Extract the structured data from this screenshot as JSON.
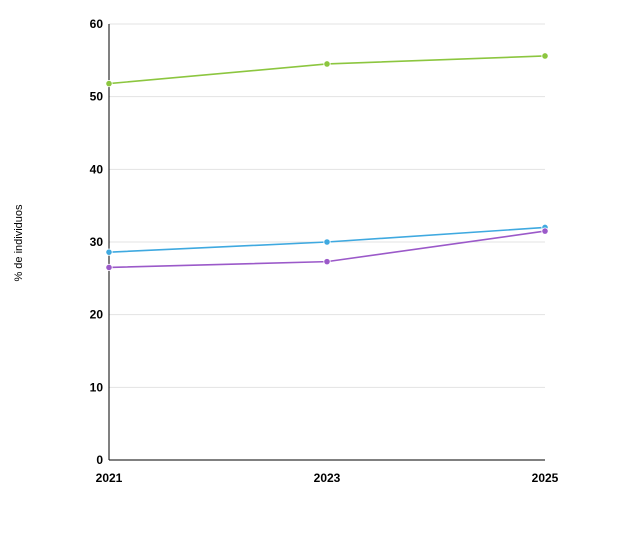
{
  "chart_data": {
    "type": "line",
    "title": "",
    "xlabel": "",
    "ylabel": "% de individuos",
    "x": [
      "2021",
      "2023",
      "2025"
    ],
    "ylim": [
      0,
      60
    ],
    "yticks": [
      0,
      10,
      20,
      30,
      40,
      50,
      60
    ],
    "grid": true,
    "legend": "none",
    "series": [
      {
        "color": "#8cc63f",
        "values": [
          51.8,
          54.5,
          55.6
        ]
      },
      {
        "color": "#3fa9e0",
        "values": [
          28.6,
          30.0,
          32.0
        ]
      },
      {
        "color": "#9b59c9",
        "values": [
          26.5,
          27.3,
          31.5
        ]
      }
    ]
  }
}
